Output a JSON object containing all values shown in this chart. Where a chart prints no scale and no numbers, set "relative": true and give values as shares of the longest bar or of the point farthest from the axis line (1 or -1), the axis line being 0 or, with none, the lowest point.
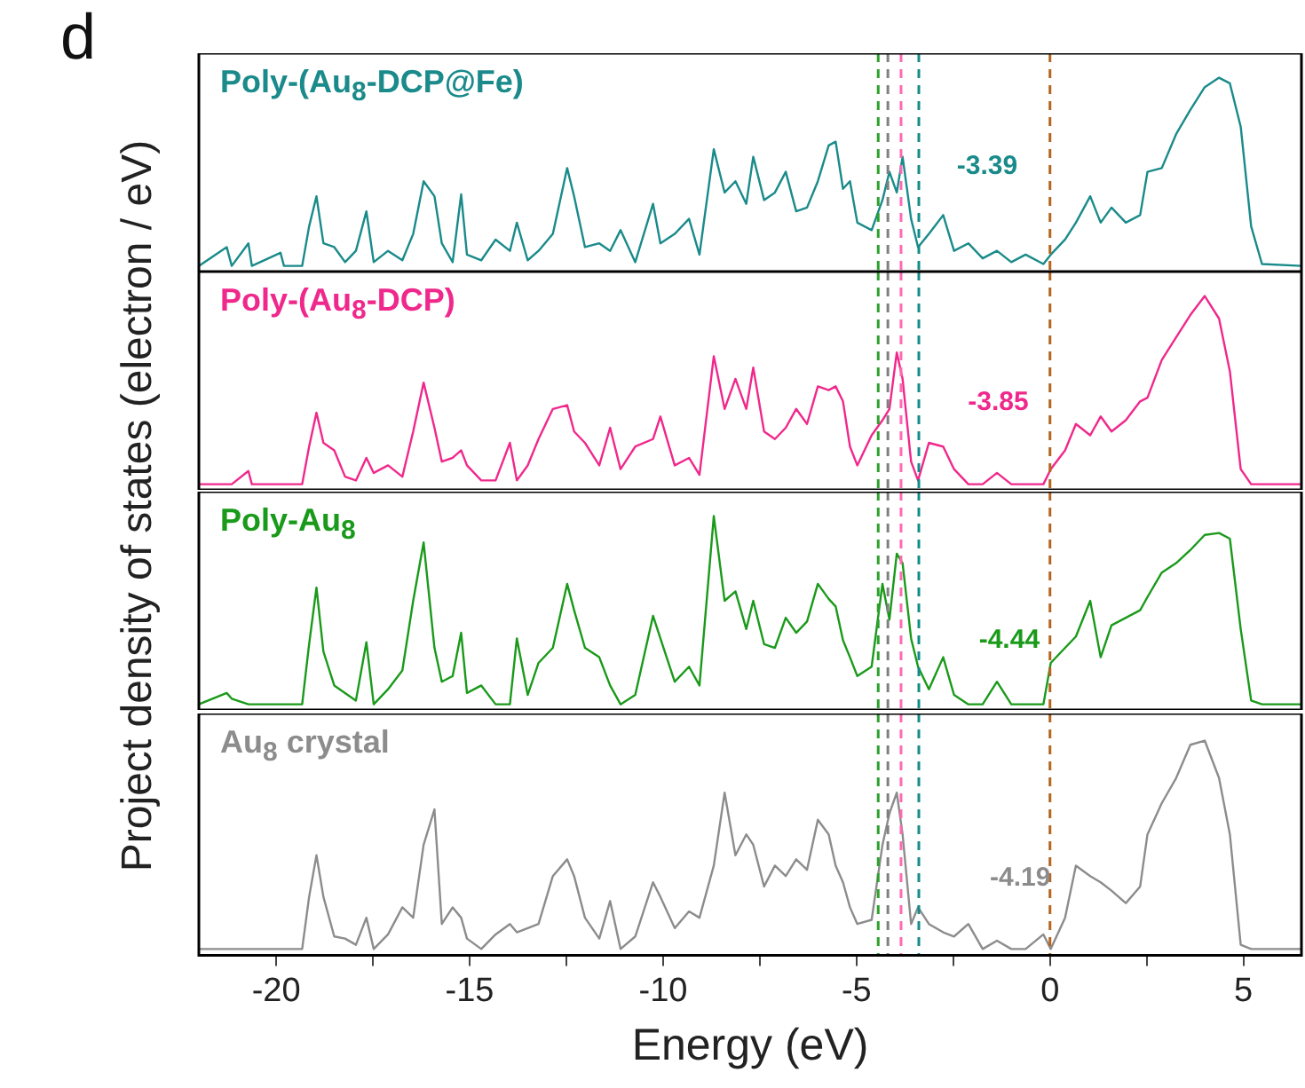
{
  "chart_data": [
    {
      "type": "line",
      "relative": true,
      "marker": "none",
      "tick_labels": false,
      "xlim": [
        -22,
        6.5
      ],
      "title": "d",
      "annotations": [
        "-3.39"
      ],
      "ref_lines": [
        {
          "axis": "x",
          "value": -4.44,
          "color": "#2ca02c",
          "line_style": "dashed"
        },
        {
          "axis": "x",
          "value": -4.19,
          "color": "#808080",
          "line_style": "dashed"
        },
        {
          "axis": "x",
          "value": -3.85,
          "color": "#ff69b4",
          "line_style": "dashed"
        },
        {
          "axis": "x",
          "value": -3.39,
          "color": "#138b8b",
          "line_style": "dashed"
        },
        {
          "axis": "x",
          "value": 0,
          "color": "#b5651d",
          "line_style": "dashed"
        }
      ],
      "x": [
        -22,
        -21.28,
        -21.15,
        -20.72,
        -20.63,
        -19.89,
        -19.8,
        -19.33,
        -19.15,
        -18.96,
        -18.78,
        -18.5,
        -18.22,
        -17.94,
        -17.67,
        -17.48,
        -17.11,
        -16.74,
        -16.46,
        -16.19,
        -15.91,
        -15.72,
        -15.44,
        -15.22,
        -15.07,
        -14.7,
        -14.33,
        -13.96,
        -13.78,
        -13.5,
        -13.22,
        -12.85,
        -12.48,
        -12.3,
        -12.02,
        -11.65,
        -11.37,
        -11.1,
        -10.72,
        -10.26,
        -10.07,
        -9.7,
        -9.33,
        -9.06,
        -8.69,
        -8.41,
        -8.13,
        -7.85,
        -7.67,
        -7.39,
        -7.11,
        -6.83,
        -6.56,
        -6.28,
        -6,
        -5.72,
        -5.54,
        -5.35,
        -5.17,
        -4.98,
        -4.61,
        -4.33,
        -4.15,
        -3.96,
        -3.81,
        -3.59,
        -3.41,
        -3.13,
        -2.76,
        -2.48,
        -2.11,
        -1.74,
        -1.37,
        -1,
        -0.63,
        -0.17,
        0.02,
        0.39,
        0.67,
        1.04,
        1.31,
        1.59,
        1.96,
        2.33,
        2.52,
        2.89,
        3.26,
        3.63,
        4,
        4.37,
        4.65,
        4.93,
        5.2,
        5.48,
        6.5
      ],
      "series": [
        {
          "name": "Poly-(Au$_{8}$-DCP@Fe)",
          "color": "#1a8a8a",
          "values": [
            0,
            0.1,
            0,
            0.12,
            0,
            0.07,
            0,
            0,
            0.21,
            0.37,
            0.12,
            0.1,
            0.02,
            0.08,
            0.29,
            0.02,
            0.08,
            0.03,
            0.17,
            0.45,
            0.37,
            0.12,
            0.02,
            0.38,
            0.06,
            0.03,
            0.14,
            0.08,
            0.23,
            0.03,
            0.08,
            0.17,
            0.52,
            0.37,
            0.1,
            0.12,
            0.08,
            0.19,
            0.02,
            0.33,
            0.12,
            0.17,
            0.25,
            0.06,
            0.62,
            0.39,
            0.45,
            0.33,
            0.58,
            0.35,
            0.39,
            0.5,
            0.29,
            0.31,
            0.45,
            0.64,
            0.66,
            0.41,
            0.45,
            0.23,
            0.19,
            0.35,
            0.5,
            0.39,
            0.58,
            0.25,
            0.1,
            0.17,
            0.27,
            0.08,
            0.12,
            0.04,
            0.08,
            0.02,
            0.06,
            0.01,
            0.06,
            0.14,
            0.23,
            0.37,
            0.23,
            0.31,
            0.23,
            0.27,
            0.5,
            0.52,
            0.7,
            0.83,
            0.95,
            1,
            0.97,
            0.74,
            0.21,
            0.01,
            0
          ]
        }
      ]
    },
    {
      "type": "line",
      "relative": true,
      "marker": "none",
      "tick_labels": false,
      "xlim": [
        -22,
        6.5
      ],
      "annotations": [
        "-3.85"
      ],
      "ref_lines": [
        {
          "axis": "x",
          "value": -4.44,
          "color": "#2ca02c",
          "line_style": "dashed"
        },
        {
          "axis": "x",
          "value": -4.19,
          "color": "#808080",
          "line_style": "dashed"
        },
        {
          "axis": "x",
          "value": -3.85,
          "color": "#ff69b4",
          "line_style": "dashed"
        },
        {
          "axis": "x",
          "value": -3.39,
          "color": "#138b8b",
          "line_style": "dashed"
        },
        {
          "axis": "x",
          "value": 0,
          "color": "#b5651d",
          "line_style": "dashed"
        }
      ],
      "x": [
        -22,
        -21.28,
        -21.15,
        -20.72,
        -20.63,
        -19.89,
        -19.8,
        -19.33,
        -19.15,
        -18.96,
        -18.78,
        -18.5,
        -18.22,
        -17.94,
        -17.67,
        -17.48,
        -17.11,
        -16.74,
        -16.46,
        -16.19,
        -15.91,
        -15.72,
        -15.44,
        -15.22,
        -15.07,
        -14.7,
        -14.33,
        -13.96,
        -13.78,
        -13.5,
        -13.22,
        -12.85,
        -12.48,
        -12.3,
        -12.02,
        -11.65,
        -11.37,
        -11.1,
        -10.72,
        -10.26,
        -10.07,
        -9.7,
        -9.33,
        -9.06,
        -8.69,
        -8.41,
        -8.13,
        -7.85,
        -7.67,
        -7.39,
        -7.11,
        -6.83,
        -6.56,
        -6.28,
        -6,
        -5.72,
        -5.54,
        -5.35,
        -5.17,
        -4.98,
        -4.61,
        -4.33,
        -4.15,
        -3.96,
        -3.81,
        -3.59,
        -3.41,
        -3.13,
        -2.76,
        -2.48,
        -2.11,
        -1.74,
        -1.37,
        -1,
        -0.63,
        -0.17,
        0.02,
        0.39,
        0.67,
        1.04,
        1.31,
        1.59,
        1.96,
        2.33,
        2.52,
        2.89,
        3.26,
        3.63,
        4,
        4.37,
        4.65,
        4.93,
        5.2,
        5.48,
        6.5
      ],
      "series": [
        {
          "name": "Poly-(Au$_{8}$-DCP)",
          "color": "#f0288c",
          "values": [
            0,
            0,
            0,
            0.07,
            0,
            0,
            0,
            0,
            0.2,
            0.38,
            0.22,
            0.18,
            0.04,
            0.02,
            0.14,
            0.06,
            0.1,
            0.04,
            0.28,
            0.54,
            0.3,
            0.12,
            0.14,
            0.18,
            0.1,
            0.02,
            0.02,
            0.22,
            0.02,
            0.1,
            0.24,
            0.4,
            0.42,
            0.28,
            0.22,
            0.1,
            0.3,
            0.08,
            0.2,
            0.24,
            0.36,
            0.1,
            0.14,
            0.05,
            0.68,
            0.4,
            0.56,
            0.4,
            0.62,
            0.28,
            0.24,
            0.3,
            0.4,
            0.32,
            0.52,
            0.5,
            0.52,
            0.44,
            0.2,
            0.1,
            0.26,
            0.34,
            0.4,
            0.7,
            0.56,
            0.12,
            0.02,
            0.22,
            0.2,
            0.08,
            0,
            0,
            0.06,
            0,
            0,
            0,
            0.08,
            0.18,
            0.32,
            0.26,
            0.36,
            0.28,
            0.34,
            0.44,
            0.46,
            0.66,
            0.78,
            0.9,
            1,
            0.88,
            0.6,
            0.08,
            0,
            0,
            0
          ]
        }
      ]
    },
    {
      "type": "line",
      "relative": true,
      "marker": "none",
      "tick_labels": false,
      "xlim": [
        -22,
        6.5
      ],
      "annotations": [
        "-4.44"
      ],
      "ref_lines": [
        {
          "axis": "x",
          "value": -4.44,
          "color": "#2ca02c",
          "line_style": "dashed"
        },
        {
          "axis": "x",
          "value": -4.19,
          "color": "#808080",
          "line_style": "dashed"
        },
        {
          "axis": "x",
          "value": -3.85,
          "color": "#ff69b4",
          "line_style": "dashed"
        },
        {
          "axis": "x",
          "value": -3.39,
          "color": "#138b8b",
          "line_style": "dashed"
        },
        {
          "axis": "x",
          "value": 0,
          "color": "#b5651d",
          "line_style": "dashed"
        }
      ],
      "x": [
        -22,
        -21.28,
        -21.15,
        -20.72,
        -20.63,
        -19.89,
        -19.8,
        -19.33,
        -19.15,
        -18.96,
        -18.78,
        -18.5,
        -18.22,
        -17.94,
        -17.67,
        -17.48,
        -17.11,
        -16.74,
        -16.46,
        -16.19,
        -15.91,
        -15.72,
        -15.44,
        -15.22,
        -15.07,
        -14.7,
        -14.33,
        -13.96,
        -13.78,
        -13.5,
        -13.22,
        -12.85,
        -12.48,
        -12.3,
        -12.02,
        -11.65,
        -11.37,
        -11.1,
        -10.72,
        -10.26,
        -10.07,
        -9.7,
        -9.33,
        -9.06,
        -8.69,
        -8.41,
        -8.13,
        -7.85,
        -7.67,
        -7.39,
        -7.11,
        -6.83,
        -6.56,
        -6.28,
        -6,
        -5.72,
        -5.54,
        -5.35,
        -5.17,
        -4.98,
        -4.61,
        -4.33,
        -4.15,
        -3.96,
        -3.81,
        -3.59,
        -3.41,
        -3.13,
        -2.76,
        -2.48,
        -2.11,
        -1.74,
        -1.37,
        -1,
        -0.63,
        -0.17,
        0.02,
        0.39,
        0.67,
        1.04,
        1.31,
        1.59,
        1.96,
        2.33,
        2.52,
        2.89,
        3.26,
        3.63,
        4,
        4.37,
        4.65,
        4.93,
        5.2,
        5.48,
        6.5
      ],
      "series": [
        {
          "name": "Poly-Au$_{8}$",
          "color": "#1a9a1a",
          "values": [
            0,
            0.06,
            0.03,
            0,
            0,
            0,
            0,
            0,
            0.32,
            0.62,
            0.28,
            0.1,
            0.06,
            0.02,
            0.33,
            0,
            0.08,
            0.18,
            0.55,
            0.86,
            0.3,
            0.12,
            0.15,
            0.38,
            0.06,
            0.1,
            0,
            0,
            0.35,
            0.05,
            0.22,
            0.3,
            0.64,
            0.5,
            0.3,
            0.25,
            0.1,
            0,
            0.05,
            0.47,
            0.35,
            0.12,
            0.2,
            0.1,
            1,
            0.55,
            0.6,
            0.4,
            0.55,
            0.32,
            0.3,
            0.46,
            0.38,
            0.44,
            0.64,
            0.56,
            0.52,
            0.34,
            0.25,
            0.15,
            0.2,
            0.64,
            0.45,
            0.8,
            0.75,
            0.35,
            0.2,
            0.08,
            0.25,
            0.05,
            0,
            0,
            0.12,
            0,
            0,
            0,
            0.22,
            0.3,
            0.36,
            0.55,
            0.25,
            0.42,
            0.46,
            0.5,
            0.57,
            0.7,
            0.75,
            0.82,
            0.9,
            0.91,
            0.88,
            0.4,
            0.02,
            0,
            0
          ]
        }
      ]
    },
    {
      "type": "line",
      "relative": true,
      "marker": "none",
      "tick_labels": "x",
      "xlim": [
        -22,
        6.5
      ],
      "xticks": [
        -20,
        {
          "value": -17.5,
          "label": null
        },
        -15,
        {
          "value": -12.5,
          "label": null
        },
        -10,
        {
          "value": -7.5,
          "label": null
        },
        -5,
        {
          "value": -2.5,
          "label": null
        },
        0,
        {
          "value": 2.5,
          "label": null
        },
        5
      ],
      "xlabel": "Energy (eV)",
      "ylabel": "Project density of states (electron / eV)",
      "annotations": [
        "-4.19"
      ],
      "ref_lines": [
        {
          "axis": "x",
          "value": -4.44,
          "color": "#2ca02c",
          "line_style": "dashed"
        },
        {
          "axis": "x",
          "value": -4.19,
          "color": "#808080",
          "line_style": "dashed"
        },
        {
          "axis": "x",
          "value": -3.85,
          "color": "#ff69b4",
          "line_style": "dashed"
        },
        {
          "axis": "x",
          "value": -3.39,
          "color": "#138b8b",
          "line_style": "dashed"
        },
        {
          "axis": "x",
          "value": 0,
          "color": "#b5651d",
          "line_style": "dashed"
        }
      ],
      "x": [
        -22,
        -21.28,
        -21.15,
        -20.72,
        -20.63,
        -19.89,
        -19.8,
        -19.33,
        -19.15,
        -18.96,
        -18.78,
        -18.5,
        -18.22,
        -17.94,
        -17.67,
        -17.48,
        -17.11,
        -16.74,
        -16.46,
        -16.19,
        -15.91,
        -15.72,
        -15.44,
        -15.22,
        -15.07,
        -14.7,
        -14.33,
        -13.96,
        -13.78,
        -13.5,
        -13.22,
        -12.85,
        -12.48,
        -12.3,
        -12.02,
        -11.65,
        -11.37,
        -11.1,
        -10.72,
        -10.26,
        -10.07,
        -9.7,
        -9.33,
        -9.06,
        -8.69,
        -8.41,
        -8.13,
        -7.85,
        -7.67,
        -7.39,
        -7.11,
        -6.83,
        -6.56,
        -6.28,
        -6,
        -5.72,
        -5.54,
        -5.35,
        -5.17,
        -4.98,
        -4.61,
        -4.33,
        -4.15,
        -3.96,
        -3.81,
        -3.59,
        -3.41,
        -3.13,
        -2.76,
        -2.48,
        -2.11,
        -1.74,
        -1.37,
        -1,
        -0.63,
        -0.17,
        0.02,
        0.39,
        0.67,
        1.04,
        1.31,
        1.59,
        1.96,
        2.33,
        2.52,
        2.89,
        3.26,
        3.63,
        4,
        4.37,
        4.65,
        4.93,
        5.2,
        5.48,
        6.5
      ],
      "series": [
        {
          "name": "Au$_{8}$ crystal",
          "color": "#8c8c8c",
          "values": [
            0,
            0,
            0,
            0,
            0,
            0,
            0,
            0,
            0.25,
            0.45,
            0.25,
            0.06,
            0.05,
            0.02,
            0.15,
            0,
            0.07,
            0.2,
            0.15,
            0.5,
            0.67,
            0.12,
            0.2,
            0.15,
            0.05,
            0,
            0.07,
            0.12,
            0.08,
            0.1,
            0.12,
            0.35,
            0.43,
            0.35,
            0.15,
            0.05,
            0.23,
            0,
            0.06,
            0.32,
            0.25,
            0.1,
            0.18,
            0.15,
            0.4,
            0.75,
            0.45,
            0.55,
            0.5,
            0.3,
            0.4,
            0.35,
            0.43,
            0.38,
            0.62,
            0.55,
            0.4,
            0.32,
            0.2,
            0.12,
            0.14,
            0.5,
            0.65,
            0.75,
            0.55,
            0.12,
            0.2,
            0.12,
            0.08,
            0.06,
            0.12,
            0,
            0.04,
            0,
            0,
            0.07,
            0,
            0.15,
            0.4,
            0.35,
            0.32,
            0.28,
            0.22,
            0.3,
            0.55,
            0.7,
            0.82,
            0.98,
            1,
            0.82,
            0.55,
            0.02,
            0,
            0,
            0
          ]
        }
      ]
    }
  ]
}
